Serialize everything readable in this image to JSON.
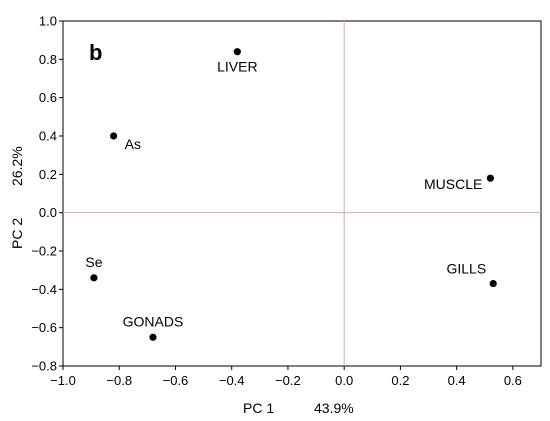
{
  "chart_data": {
    "type": "scatter",
    "panel_label": "b",
    "xlabel": "PC 1",
    "xlabel_variance": "43.9%",
    "ylabel": "PC 2",
    "ylabel_variance": "26.2%",
    "xlim": [
      -1.0,
      0.7
    ],
    "ylim": [
      -0.8,
      1.0
    ],
    "xticks": [
      -1.0,
      -0.8,
      -0.6,
      -0.4,
      -0.2,
      0.0,
      0.2,
      0.4,
      0.6
    ],
    "xtick_labels": [
      "−1.0",
      "−0.8",
      "−0.6",
      "−0.4",
      "−0.2",
      "0.0",
      "0.2",
      "0.4",
      "0.6"
    ],
    "yticks": [
      -0.8,
      -0.6,
      -0.4,
      -0.2,
      0.0,
      0.2,
      0.4,
      0.6,
      0.8,
      1.0
    ],
    "ytick_labels": [
      "−0.8",
      "−0.6",
      "−0.4",
      "−0.2",
      "0.0",
      "0.2",
      "0.4",
      "0.6",
      "0.8",
      "1.0"
    ],
    "reference_lines": {
      "x": 0.0,
      "y": 0.0,
      "color": "#e8a0a0"
    },
    "points": [
      {
        "label": "LIVER",
        "x": -0.38,
        "y": 0.84,
        "label_pos": "below"
      },
      {
        "label": "As",
        "x": -0.82,
        "y": 0.4,
        "label_pos": "below-right"
      },
      {
        "label": "MUSCLE",
        "x": 0.52,
        "y": 0.18,
        "label_pos": "left"
      },
      {
        "label": "Se",
        "x": -0.89,
        "y": -0.34,
        "label_pos": "above"
      },
      {
        "label": "GILLS",
        "x": 0.53,
        "y": -0.37,
        "label_pos": "above-left"
      },
      {
        "label": "GONADS",
        "x": -0.68,
        "y": -0.65,
        "label_pos": "above"
      }
    ]
  }
}
